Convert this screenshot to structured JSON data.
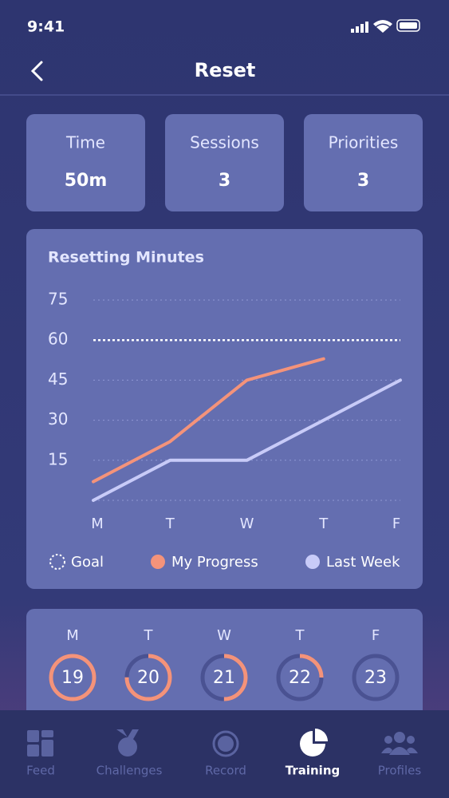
{
  "status_bar": {
    "time": "9:41"
  },
  "header": {
    "title": "Reset"
  },
  "stats": [
    {
      "label": "Time",
      "value": "50m"
    },
    {
      "label": "Sessions",
      "value": 3
    },
    {
      "label": "Priorities",
      "value": 3
    }
  ],
  "chart_data": {
    "type": "line",
    "title": "Resetting Minutes",
    "categories": [
      "M",
      "T",
      "W",
      "T",
      "F"
    ],
    "series": [
      {
        "name": "My Progress",
        "color": "#f4937a",
        "values": [
          7,
          22,
          45,
          53,
          null
        ]
      },
      {
        "name": "Last Week",
        "color": "#c8cbf8",
        "values": [
          0,
          15,
          15,
          30,
          45
        ]
      }
    ],
    "goal": {
      "name": "Goal",
      "value": 60,
      "color": "#ffffff"
    },
    "ylim": [
      0,
      75
    ],
    "yticks": [
      15,
      30,
      45,
      60,
      75
    ],
    "grid": true
  },
  "days": {
    "labels": [
      "M",
      "T",
      "W",
      "T",
      "F"
    ],
    "dates": [
      19,
      20,
      21,
      22,
      23
    ],
    "progress": [
      1,
      0.75,
      0.5,
      0.25,
      0
    ]
  },
  "tab_bar": {
    "items": [
      "Feed",
      "Challenges",
      "Record",
      "Training",
      "Profiles"
    ],
    "active": 3
  }
}
